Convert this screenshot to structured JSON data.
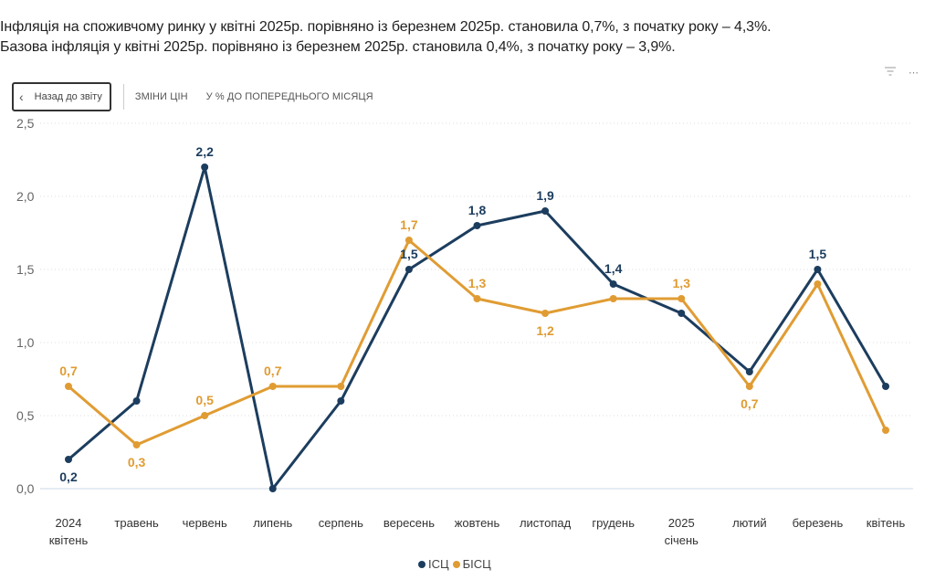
{
  "header": {
    "line1": "Інфляція на споживчому ринку у квітні 2025р. порівняно із березнем 2025р. становила 0,7%, з початку року – 4,3%.",
    "line2": "Базова інфляція у квітні 2025р. порівняно із березнем 2025р. становила 0,4%, з початку року – 3,9%."
  },
  "toolbar": {
    "back_label": "Назад до звіту",
    "back_icon": "chevron-left-icon",
    "breadcrumb_1": "ЗМІНИ ЦІН",
    "breadcrumb_2": "У % ДО ПОПЕРЕДНЬОГО МІСЯЦЯ",
    "filter_icon": "filter-icon",
    "more_icon": "more-options-icon"
  },
  "colors": {
    "isc": "#1c3d5e",
    "bisc": "#e09c33",
    "grid": "#dcdcdc",
    "baseline": "#e6ebf2",
    "tick_text": "#666666"
  },
  "chart_data": {
    "type": "line",
    "title": "",
    "xlabel": "",
    "ylabel": "",
    "ylim": [
      0,
      2.5
    ],
    "yticks": [
      "0,0",
      "0,5",
      "1,0",
      "1,5",
      "2,0",
      "2,5"
    ],
    "ytick_values": [
      0,
      0.5,
      1.0,
      1.5,
      2.0,
      2.5
    ],
    "grid": true,
    "legend_position": "bottom-center",
    "categories": [
      [
        "2024",
        "квітень"
      ],
      [
        "травень"
      ],
      [
        "червень"
      ],
      [
        "липень"
      ],
      [
        "серпень"
      ],
      [
        "вересень"
      ],
      [
        "жовтень"
      ],
      [
        "листопад"
      ],
      [
        "грудень"
      ],
      [
        "2025",
        "січень"
      ],
      [
        "лютий"
      ],
      [
        "березень"
      ],
      [
        "квітень"
      ]
    ],
    "series": [
      {
        "name": "ІСЦ",
        "color": "#1c3d5e",
        "values": [
          0.2,
          0.6,
          2.2,
          0.0,
          0.6,
          1.5,
          1.8,
          1.9,
          1.4,
          1.2,
          0.8,
          1.5,
          0.7
        ],
        "labels": [
          "0,2",
          null,
          "2,2",
          null,
          null,
          "1,5",
          "1,8",
          "1,9",
          "1,4",
          null,
          null,
          "1,5",
          null
        ],
        "label_pos": [
          "below",
          null,
          "above",
          null,
          null,
          "above",
          "above",
          "above",
          "above",
          null,
          null,
          "above",
          null
        ]
      },
      {
        "name": "БІСЦ",
        "color": "#e09c33",
        "values": [
          0.7,
          0.3,
          0.5,
          0.7,
          0.7,
          1.7,
          1.3,
          1.2,
          1.3,
          1.3,
          0.7,
          1.4,
          0.4
        ],
        "labels": [
          "0,7",
          "0,3",
          "0,5",
          "0,7",
          null,
          "1,7",
          "1,3",
          "1,2",
          null,
          "1,3",
          "0,7",
          null,
          null
        ],
        "label_pos": [
          "above",
          "below",
          "above",
          "above",
          null,
          "above",
          "above",
          "below",
          null,
          "above",
          "below",
          null,
          null
        ]
      }
    ]
  },
  "legend": [
    {
      "name": "ІСЦ",
      "color": "#1c3d5e"
    },
    {
      "name": "БІСЦ",
      "color": "#e09c33"
    }
  ]
}
